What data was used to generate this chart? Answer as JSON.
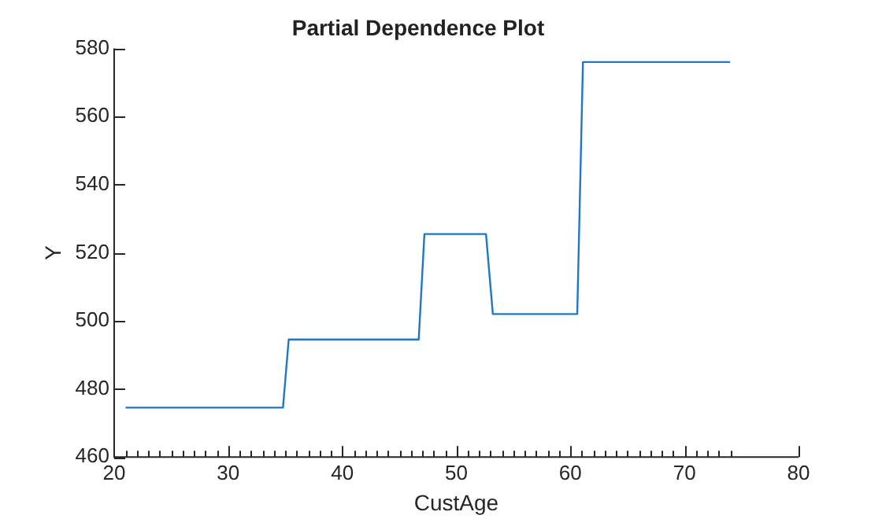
{
  "chart_data": {
    "type": "line",
    "title": "Partial Dependence Plot",
    "xlabel": "CustAge",
    "ylabel": "Y",
    "x": [
      21,
      34.8,
      35.3,
      46.7,
      47.2,
      52.6,
      53.2,
      60.6,
      61.1,
      74
    ],
    "series": [
      {
        "color": "#1f77c8",
        "values": [
          474.5,
          474.5,
          494.5,
          494.5,
          525.5,
          525.5,
          502,
          502,
          576,
          576
        ]
      }
    ],
    "xlim": [
      20,
      80
    ],
    "xticks": [
      20,
      {
        "value": 21,
        "label": null
      },
      {
        "value": 22,
        "label": null
      },
      {
        "value": 23,
        "label": null
      },
      {
        "value": 24,
        "label": null
      },
      {
        "value": 25,
        "label": null
      },
      {
        "value": 26,
        "label": null
      },
      {
        "value": 27,
        "label": null
      },
      {
        "value": 28,
        "label": null
      },
      {
        "value": 29,
        "label": null
      },
      30,
      {
        "value": 31,
        "label": null
      },
      {
        "value": 32,
        "label": null
      },
      {
        "value": 33,
        "label": null
      },
      {
        "value": 34,
        "label": null
      },
      {
        "value": 35,
        "label": null
      },
      {
        "value": 36,
        "label": null
      },
      {
        "value": 37,
        "label": null
      },
      {
        "value": 38,
        "label": null
      },
      {
        "value": 39,
        "label": null
      },
      40,
      {
        "value": 41,
        "label": null
      },
      {
        "value": 42,
        "label": null
      },
      {
        "value": 43,
        "label": null
      },
      {
        "value": 44,
        "label": null
      },
      {
        "value": 45,
        "label": null
      },
      {
        "value": 46,
        "label": null
      },
      {
        "value": 47,
        "label": null
      },
      {
        "value": 48,
        "label": null
      },
      {
        "value": 49,
        "label": null
      },
      50,
      {
        "value": 51,
        "label": null
      },
      {
        "value": 52,
        "label": null
      },
      {
        "value": 53,
        "label": null
      },
      {
        "value": 54,
        "label": null
      },
      {
        "value": 55,
        "label": null
      },
      {
        "value": 56,
        "label": null
      },
      {
        "value": 57,
        "label": null
      },
      {
        "value": 58,
        "label": null
      },
      {
        "value": 59,
        "label": null
      },
      60,
      {
        "value": 61,
        "label": null
      },
      {
        "value": 62,
        "label": null
      },
      {
        "value": 63,
        "label": null
      },
      {
        "value": 64,
        "label": null
      },
      {
        "value": 65,
        "label": null
      },
      {
        "value": 66,
        "label": null
      },
      {
        "value": 67,
        "label": null
      },
      {
        "value": 68,
        "label": null
      },
      {
        "value": 69,
        "label": null
      },
      70,
      {
        "value": 71,
        "label": null
      },
      {
        "value": 72,
        "label": null
      },
      {
        "value": 73,
        "label": null
      },
      {
        "value": 74,
        "label": null
      },
      80
    ],
    "ylim": [
      460,
      580
    ],
    "yticks": [
      460,
      480,
      500,
      520,
      540,
      560,
      580
    ],
    "grid": false,
    "legend": false,
    "marker": "none",
    "line_style": "solid"
  }
}
